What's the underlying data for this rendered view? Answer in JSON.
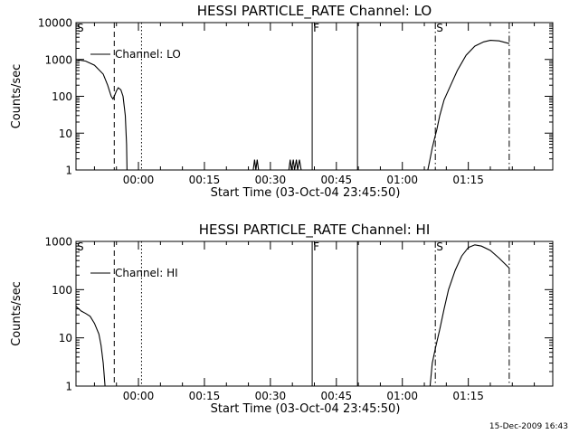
{
  "footer": {
    "timestamp": "15-Dec-2009 16:43"
  },
  "chart_data": [
    {
      "type": "line",
      "title": "HESSI PARTICLE_RATE Channel: LO",
      "xlabel": "Start Time (03-Oct-04 23:45:50)",
      "ylabel": "Counts/sec",
      "yscale": "log",
      "ylim": [
        1,
        10000
      ],
      "xlim_minutes": [
        -14.2,
        94.2
      ],
      "xtick_labels": [
        "00:00",
        "00:15",
        "00:30",
        "00:45",
        "01:00",
        "01:15"
      ],
      "ytick_labels": [
        "1",
        "10",
        "100",
        "1000",
        "10000"
      ],
      "legend": "Channel: LO",
      "markers": [
        {
          "label": "S",
          "t": -14.2
        },
        {
          "label": "F",
          "t": 39.5
        },
        {
          "label": "S",
          "t": 67.5
        }
      ],
      "vertical_lines": [
        {
          "t": -5.5,
          "style": "dashed"
        },
        {
          "t": 0.7,
          "style": "dotted"
        },
        {
          "t": 39.5,
          "style": "solid"
        },
        {
          "t": 49.8,
          "style": "solid"
        },
        {
          "t": 67.5,
          "style": "dashdot"
        },
        {
          "t": 84.3,
          "style": "dashdot"
        }
      ],
      "series": [
        {
          "segments": [
            [
              [
                -14.2,
                1000
              ],
              [
                -12,
                900
              ],
              [
                -10,
                700
              ],
              [
                -8,
                400
              ],
              [
                -7,
                200
              ],
              [
                -6.2,
                100
              ],
              [
                -5.8,
                85
              ],
              [
                -5.5,
                100
              ],
              [
                -5,
                140
              ],
              [
                -4.6,
                170
              ],
              [
                -4,
                150
              ],
              [
                -3.5,
                100
              ],
              [
                -3,
                30
              ],
              [
                -2.7,
                5
              ],
              [
                -2.6,
                1
              ]
            ],
            [
              [
                26.1,
                1
              ],
              [
                26.4,
                1.9
              ],
              [
                26.7,
                1
              ],
              [
                27,
                1.9
              ],
              [
                27.3,
                1
              ]
            ],
            [
              [
                34.2,
                1
              ],
              [
                34.5,
                1.9
              ],
              [
                34.8,
                1
              ],
              [
                35.2,
                1.9
              ],
              [
                35.5,
                1
              ],
              [
                35.9,
                1.9
              ],
              [
                36.2,
                1
              ],
              [
                36.6,
                1.9
              ],
              [
                37,
                1
              ]
            ],
            [
              [
                65.8,
                1
              ],
              [
                66.3,
                2
              ],
              [
                66.8,
                4
              ],
              [
                67.3,
                7
              ],
              [
                67.8,
                12
              ],
              [
                68.5,
                30
              ],
              [
                69.5,
                80
              ],
              [
                71,
                200
              ],
              [
                72.5,
                500
              ],
              [
                74.5,
                1300
              ],
              [
                76.5,
                2300
              ],
              [
                78.5,
                3000
              ],
              [
                80,
                3300
              ],
              [
                82,
                3200
              ],
              [
                84.3,
                2700
              ]
            ]
          ]
        }
      ]
    },
    {
      "type": "line",
      "title": "HESSI PARTICLE_RATE Channel: HI",
      "xlabel": "Start Time (03-Oct-04 23:45:50)",
      "ylabel": "Counts/sec",
      "yscale": "log",
      "ylim": [
        1,
        1000
      ],
      "xlim_minutes": [
        -14.2,
        94.2
      ],
      "xtick_labels": [
        "00:00",
        "00:15",
        "00:30",
        "00:45",
        "01:00",
        "01:15"
      ],
      "ytick_labels": [
        "1",
        "10",
        "100",
        "1000"
      ],
      "legend": "Channel: HI",
      "markers": [
        {
          "label": "S",
          "t": -14.2
        },
        {
          "label": "F",
          "t": 39.5
        },
        {
          "label": "S",
          "t": 67.5
        }
      ],
      "vertical_lines": [
        {
          "t": -5.5,
          "style": "dashed"
        },
        {
          "t": 0.7,
          "style": "dotted"
        },
        {
          "t": 39.5,
          "style": "solid"
        },
        {
          "t": 49.8,
          "style": "solid"
        },
        {
          "t": 67.5,
          "style": "dashdot"
        },
        {
          "t": 84.3,
          "style": "dashdot"
        }
      ],
      "series": [
        {
          "segments": [
            [
              [
                -14.2,
                45
              ],
              [
                -13,
                36
              ],
              [
                -12,
                32
              ],
              [
                -11,
                28
              ],
              [
                -10,
                20
              ],
              [
                -9,
                12
              ],
              [
                -8.5,
                7
              ],
              [
                -8,
                3
              ],
              [
                -7.6,
                1
              ]
            ],
            [
              [
                66.3,
                1
              ],
              [
                66.8,
                3
              ],
              [
                67.5,
                6
              ],
              [
                68.5,
                15
              ],
              [
                69.5,
                40
              ],
              [
                70.5,
                100
              ],
              [
                72,
                250
              ],
              [
                73.5,
                500
              ],
              [
                75,
                750
              ],
              [
                76.5,
                850
              ],
              [
                78,
                800
              ],
              [
                80,
                650
              ],
              [
                82,
                450
              ],
              [
                84.3,
                280
              ]
            ]
          ]
        }
      ]
    }
  ]
}
